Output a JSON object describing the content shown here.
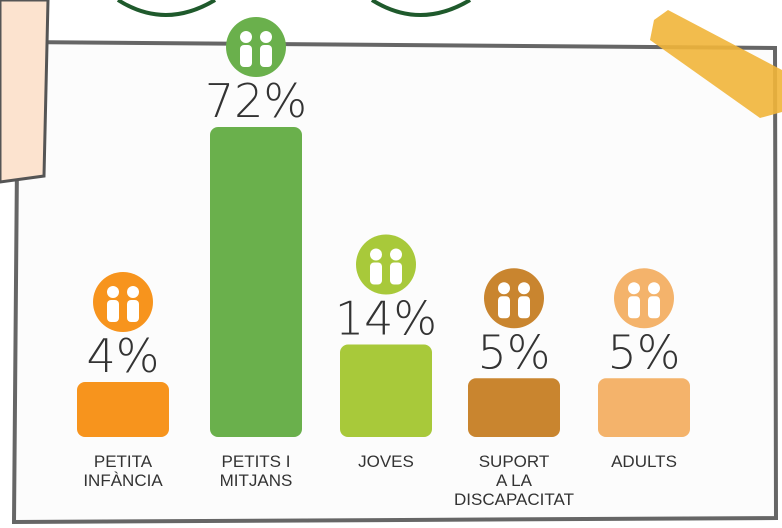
{
  "chart_data": {
    "type": "bar",
    "categories": [
      "PETITA\nINFÀNCIA",
      "PETITS I\nMITJANS",
      "JOVES",
      "SUPORT\nA LA\nDISCAPACITAT",
      "ADULTS"
    ],
    "values": [
      4,
      72,
      14,
      5,
      5
    ],
    "value_labels": [
      "4%",
      "72%",
      "14%",
      "5%",
      "5%"
    ],
    "colors": [
      "#f7941d",
      "#6ab04c",
      "#a8c93a",
      "#c9852f",
      "#f4b36b"
    ]
  }
}
